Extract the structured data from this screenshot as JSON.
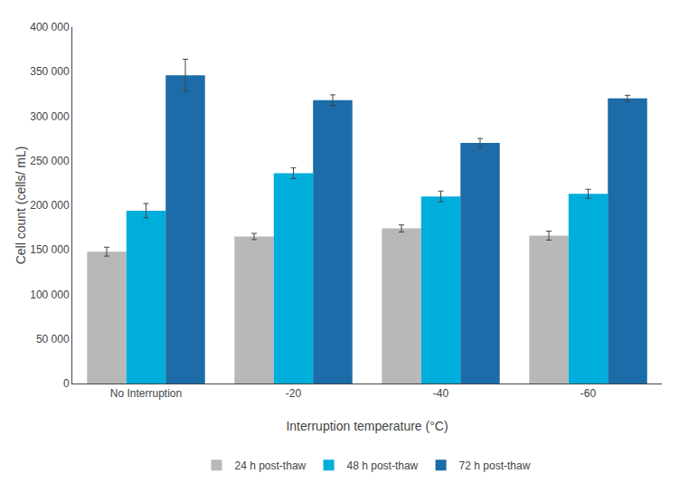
{
  "chart_data": {
    "type": "bar",
    "xlabel": "Interruption temperature (°C)",
    "ylabel": "Cell count (cells/ mL)",
    "categories": [
      "No Interruption",
      "-20",
      "-40",
      "-60"
    ],
    "series": [
      {
        "name": "24 h post-thaw",
        "color": "#b8b8b8",
        "values": [
          148000,
          165000,
          174000,
          166000
        ],
        "errors": [
          5000,
          3500,
          4000,
          5000
        ]
      },
      {
        "name": "48 h post-thaw",
        "color": "#00aedb",
        "values": [
          194000,
          236000,
          210000,
          213000
        ],
        "errors": [
          8000,
          6000,
          6000,
          5000
        ]
      },
      {
        "name": "72 h post-thaw",
        "color": "#1b6ca8",
        "values": [
          346000,
          318000,
          270000,
          320000
        ],
        "errors": [
          18000,
          6000,
          5000,
          3500
        ]
      }
    ],
    "ylim": [
      0,
      400000
    ],
    "yticks": [
      0,
      {
        "value": 50000,
        "label": "50 000"
      },
      {
        "value": 100000,
        "label": "100 000"
      },
      {
        "value": 150000,
        "label": "150 000"
      },
      {
        "value": 200000,
        "label": "200 000"
      },
      {
        "value": 250000,
        "label": "250 000"
      },
      {
        "value": 300000,
        "label": "300 000"
      },
      {
        "value": 350000,
        "label": "350 000"
      },
      {
        "value": 400000,
        "label": "400 000"
      }
    ],
    "grid": false,
    "legend": "bottom"
  }
}
